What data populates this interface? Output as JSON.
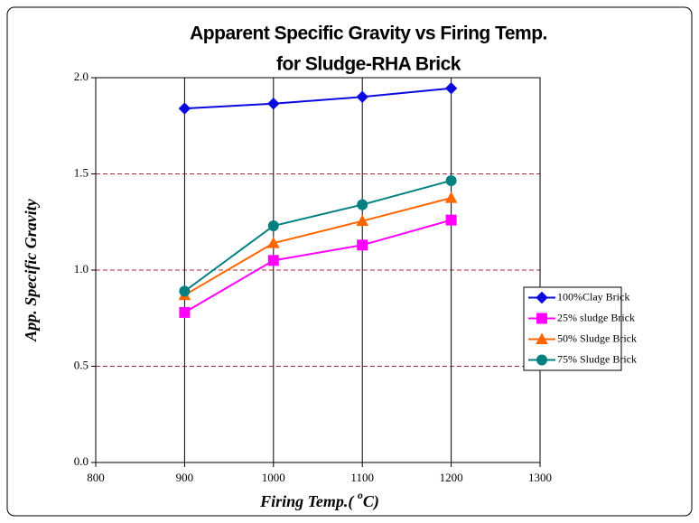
{
  "chart_data": {
    "type": "line",
    "title": "Apparent Specific Gravity vs Firing Temp.",
    "subtitle": "for Sludge-RHA Brick",
    "xlabel": [
      "Firing Temp.( ",
      "o",
      "C)"
    ],
    "ylabel": "App. Specific Gravity",
    "x": [
      900,
      1000,
      1100,
      1200
    ],
    "series": [
      {
        "name": "100%Clay Brick",
        "color": "#0a0ae0",
        "marker": "diamond",
        "values": [
          1.84,
          1.865,
          1.9,
          1.945
        ]
      },
      {
        "name": "25% sludge Brick",
        "color": "#ff00ff",
        "marker": "square",
        "values": [
          0.78,
          1.05,
          1.13,
          1.26
        ]
      },
      {
        "name": "50% Sludge Brick",
        "color": "#ff6600",
        "marker": "triangle",
        "values": [
          0.87,
          1.14,
          1.255,
          1.375
        ]
      },
      {
        "name": "75% Sludge Brick",
        "color": "#008080",
        "marker": "circle",
        "values": [
          0.89,
          1.23,
          1.34,
          1.465
        ]
      }
    ],
    "xlim": [
      800,
      1300
    ],
    "xticks": [
      800,
      900,
      1000,
      1100,
      1200,
      1300
    ],
    "ylim": [
      0,
      2
    ],
    "yticks": [
      {
        "value": 0,
        "label": "0.0"
      },
      0.5,
      {
        "value": 1,
        "label": "1.0"
      },
      1.5,
      {
        "value": 2,
        "label": "2.0"
      }
    ],
    "grid": true,
    "legend": "right"
  }
}
